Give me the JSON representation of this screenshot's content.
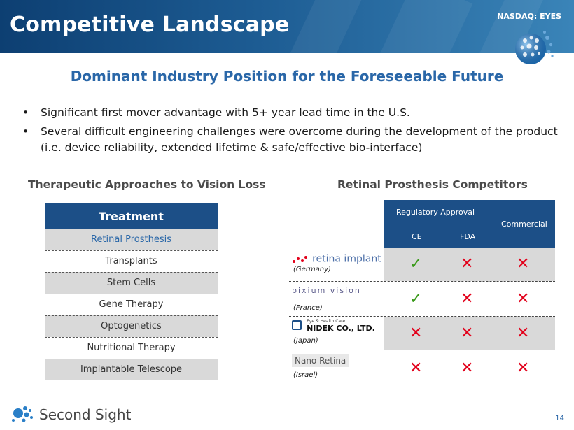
{
  "header": {
    "title": "Competitive Landscape",
    "ticker": "NASDAQ: EYES"
  },
  "subtitle": "Dominant Industry Position for the Foreseeable Future",
  "bullets": [
    "Significant first mover advantage with 5+ year lead time in the U.S.",
    "Several difficult engineering challenges were overcome during the development of the product (i.e. device reliability, extended lifetime & safe/effective bio-interface)"
  ],
  "bullet_symbol": "•",
  "left_section": {
    "heading": "Therapeutic Approaches to Vision Loss",
    "table_header": "Treatment",
    "rows": [
      "Retinal Prosthesis",
      "Transplants",
      "Stem Cells",
      "Gene Therapy",
      "Optogenetics",
      "Nutritional Therapy",
      "Implantable Telescope"
    ]
  },
  "right_section": {
    "heading": "Retinal Prosthesis Competitors",
    "header": {
      "regulatory": "Regulatory Approval",
      "ce": "CE",
      "fda": "FDA",
      "commercial": "Commercial"
    },
    "competitors": [
      {
        "logo_text": "retina implant",
        "country": "(Germany)",
        "ce": "✓",
        "fda": "✕",
        "commercial": "✕"
      },
      {
        "logo_text": "pixium vision",
        "country": "(France)",
        "ce": "✓",
        "fda": "✕",
        "commercial": "✕"
      },
      {
        "logo_tagline": "Eye & Health Care",
        "logo_text": "NIDEK CO., LTD.",
        "country": "(Japan)",
        "ce": "✕",
        "fda": "✕",
        "commercial": "✕"
      },
      {
        "logo_text": "Nano Retina",
        "country": "(Israel)",
        "ce": "✕",
        "fda": "✕",
        "commercial": "✕"
      }
    ]
  },
  "footer": {
    "brand": "Second Sight",
    "page": "14"
  },
  "colors": {
    "navy": "#1c4f87",
    "accent": "#2a67a8",
    "check": "#3a9a1a",
    "cross": "#e2001a",
    "shade": "#d9d9d9"
  },
  "icons": [
    "globe-dots-icon",
    "second-sight-logo-icon",
    "check-icon",
    "cross-icon"
  ]
}
